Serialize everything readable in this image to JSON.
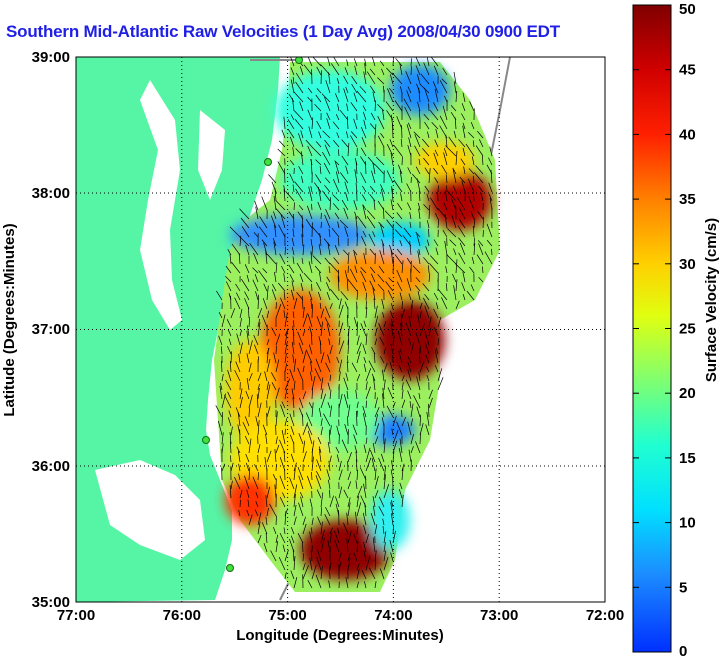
{
  "title": "Southern Mid-Atlantic Raw Velocities (1 Day Avg) 2008/04/30 0900 EDT",
  "x_axis": {
    "label": "Longitude (Degrees:Minutes)",
    "ticks": [
      "77:00",
      "76:00",
      "75:00",
      "74:00",
      "73:00",
      "72:00"
    ]
  },
  "y_axis": {
    "label": "Latitude (Degrees:Minutes)",
    "ticks": [
      "39:00",
      "38:00",
      "37:00",
      "36:00",
      "35:00"
    ]
  },
  "colorbar": {
    "label": "Surface Velocity (cm/s)",
    "ticks": [
      "0",
      "5",
      "10",
      "15",
      "20",
      "25",
      "30",
      "35",
      "40",
      "45",
      "50"
    ],
    "min": 0,
    "max": 50
  },
  "map": {
    "lon_range": [
      -77,
      -72
    ],
    "lat_range": [
      35,
      39
    ],
    "grid": true,
    "land_color": "#55f5a5",
    "ocean_color": "#ffffff"
  }
}
